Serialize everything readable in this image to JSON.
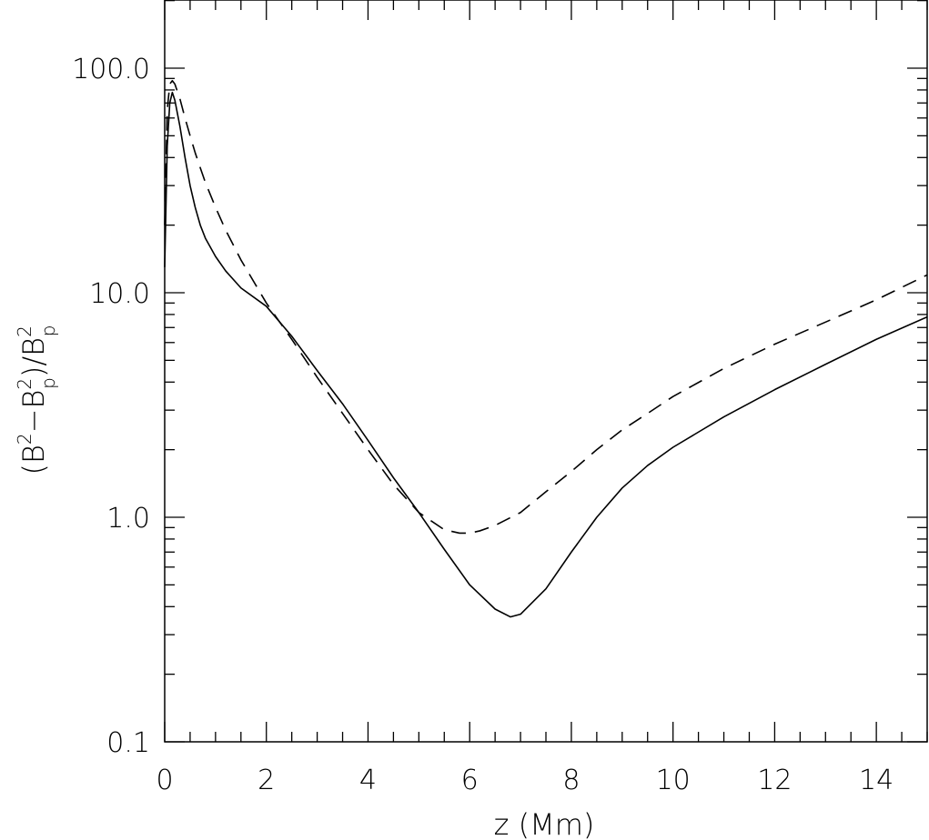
{
  "chart_data": {
    "type": "line",
    "xlabel": "z (Mm)",
    "ylabel": {
      "prefix": "(B",
      "sup1": "2",
      "minus": "−B",
      "sub2": "p",
      "sup2": "2",
      "mid": ")/B",
      "sub3": "p",
      "sup3": "2"
    },
    "xlim": [
      0,
      15
    ],
    "ylim": [
      0.1,
      200
    ],
    "y_scale": "log",
    "x_ticks": [
      0,
      2,
      4,
      6,
      8,
      10,
      12,
      14
    ],
    "x_tick_labels": [
      "0",
      "2",
      "4",
      "6",
      "8",
      "10",
      "12",
      "14"
    ],
    "y_ticks": [
      0.1,
      1.0,
      10.0,
      100.0
    ],
    "y_tick_labels": [
      "0.1",
      "1.0",
      "10.0",
      "100.0"
    ],
    "grid": false,
    "series": [
      {
        "style": "solid",
        "color": "#000000",
        "x": [
          0.0,
          0.05,
          0.1,
          0.15,
          0.2,
          0.3,
          0.4,
          0.5,
          0.6,
          0.7,
          0.8,
          1.0,
          1.2,
          1.5,
          2.0,
          2.5,
          3.0,
          3.5,
          4.0,
          4.5,
          5.0,
          5.5,
          6.0,
          6.5,
          6.8,
          7.0,
          7.5,
          8.0,
          8.5,
          9.0,
          9.5,
          10.0,
          11.0,
          12.0,
          13.0,
          14.0,
          15.0
        ],
        "y": [
          13,
          45,
          70,
          78,
          72,
          55,
          40,
          30,
          24,
          20,
          17.5,
          14.5,
          12.5,
          10.5,
          8.7,
          6.4,
          4.5,
          3.2,
          2.2,
          1.5,
          1.05,
          0.72,
          0.5,
          0.39,
          0.36,
          0.37,
          0.48,
          0.7,
          1.0,
          1.35,
          1.7,
          2.05,
          2.8,
          3.7,
          4.8,
          6.2,
          7.8
        ]
      },
      {
        "style": "dashed",
        "color": "#000000",
        "x": [
          0.0,
          0.05,
          0.1,
          0.15,
          0.2,
          0.3,
          0.4,
          0.5,
          0.6,
          0.7,
          0.8,
          1.0,
          1.2,
          1.5,
          2.0,
          2.5,
          3.0,
          3.5,
          4.0,
          4.5,
          5.0,
          5.5,
          5.8,
          6.0,
          6.2,
          6.5,
          7.0,
          7.5,
          8.0,
          8.5,
          9.0,
          9.5,
          10.0,
          11.0,
          12.0,
          13.0,
          14.0,
          15.0
        ],
        "y": [
          20,
          65,
          85,
          88,
          85,
          73,
          60,
          50,
          42,
          36,
          31,
          24,
          19,
          14,
          9.0,
          6.2,
          4.2,
          2.9,
          2.0,
          1.4,
          1.05,
          0.88,
          0.85,
          0.85,
          0.87,
          0.92,
          1.05,
          1.3,
          1.6,
          2.0,
          2.45,
          2.9,
          3.45,
          4.6,
          5.9,
          7.4,
          9.3,
          12.0
        ]
      }
    ]
  }
}
